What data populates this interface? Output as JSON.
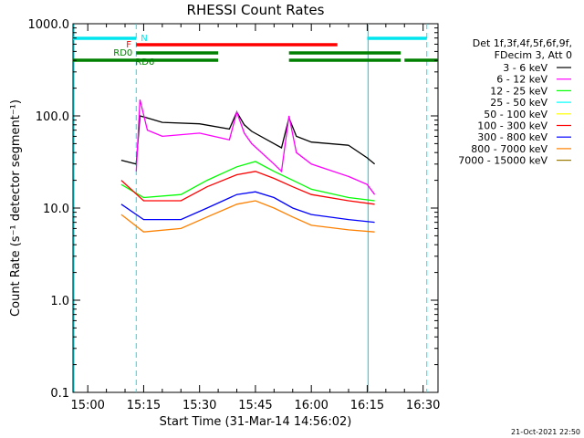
{
  "chart_data": {
    "type": "line",
    "title": "RHESSI Count Rates",
    "xlabel": "Start Time (31-Mar-14 14:56:02)",
    "ylabel": "Count Rate (s⁻¹ detector segment⁻¹)",
    "y_scale": "log",
    "ylim": [
      0.1,
      1000
    ],
    "xlim": [
      "14:56:02",
      "16:34:00"
    ],
    "x_ticks": [
      "15:00",
      "15:15",
      "15:30",
      "15:45",
      "16:00",
      "16:15",
      "16:30"
    ],
    "y_ticks": [
      "0.1",
      "1.0",
      "10.0",
      "100.0",
      "1000.0"
    ],
    "legend_header": [
      "Det 1f,3f,4f,5f,6f,9f,",
      "FDecim 3, Att 0"
    ],
    "legend_position": "right",
    "series": [
      {
        "name": "3 - 6 keV",
        "color": "#000000",
        "x": [
          "15:09",
          "15:13",
          "15:14",
          "15:16",
          "15:20",
          "15:30",
          "15:38",
          "15:40",
          "15:42",
          "15:44",
          "15:50",
          "15:52",
          "15:54",
          "15:56",
          "16:00",
          "16:10",
          "16:15",
          "16:17"
        ],
        "values": [
          33,
          30,
          100,
          95,
          85,
          82,
          72,
          110,
          80,
          68,
          50,
          45,
          95,
          60,
          52,
          48,
          35,
          30
        ]
      },
      {
        "name": "6 - 12 keV",
        "color": "#ff00ff",
        "x": [
          "15:13",
          "15:14",
          "15:16",
          "15:20",
          "15:30",
          "15:38",
          "15:40",
          "15:42",
          "15:44",
          "15:50",
          "15:52",
          "15:54",
          "15:56",
          "16:00",
          "16:10",
          "16:15",
          "16:17"
        ],
        "values": [
          25,
          150,
          70,
          60,
          65,
          55,
          110,
          65,
          50,
          30,
          25,
          100,
          40,
          30,
          22,
          18,
          14
        ]
      },
      {
        "name": "12 - 25 keV",
        "color": "#00ff00",
        "x": [
          "15:09",
          "15:15",
          "15:25",
          "15:32",
          "15:40",
          "15:45",
          "15:50",
          "15:55",
          "16:00",
          "16:10",
          "16:17"
        ],
        "values": [
          18,
          13,
          14,
          20,
          28,
          32,
          25,
          20,
          16,
          13,
          12
        ]
      },
      {
        "name": "25 - 50 keV",
        "color": "#00ffff",
        "x": [],
        "values": []
      },
      {
        "name": "50 - 100 keV",
        "color": "#ffff00",
        "x": [],
        "values": []
      },
      {
        "name": "100 - 300 keV",
        "color": "#ff0000",
        "x": [
          "15:09",
          "15:15",
          "15:25",
          "15:32",
          "15:40",
          "15:45",
          "15:50",
          "15:55",
          "16:00",
          "16:10",
          "16:17"
        ],
        "values": [
          20,
          12,
          12,
          17,
          23,
          25,
          21,
          17,
          14,
          12,
          11
        ]
      },
      {
        "name": "300 - 800 keV",
        "color": "#0000ff",
        "x": [
          "15:09",
          "15:15",
          "15:25",
          "15:32",
          "15:40",
          "15:45",
          "15:50",
          "15:55",
          "16:00",
          "16:10",
          "16:17"
        ],
        "values": [
          11,
          7.5,
          7.5,
          10,
          14,
          15,
          13,
          10,
          8.5,
          7.5,
          7
        ]
      },
      {
        "name": "800 - 7000 keV",
        "color": "#ff8000",
        "x": [
          "15:09",
          "15:15",
          "15:25",
          "15:32",
          "15:40",
          "15:45",
          "15:50",
          "15:55",
          "16:00",
          "16:10",
          "16:17"
        ],
        "values": [
          8.5,
          5.5,
          6,
          8,
          11,
          12,
          10,
          8,
          6.5,
          5.8,
          5.5
        ]
      },
      {
        "name": "7000 - 15000 keV",
        "color": "#9a7a00",
        "x": [],
        "values": []
      }
    ],
    "flags": [
      {
        "label": "N",
        "color": "#00e5ee",
        "row": 1,
        "segments": [
          [
            "14:56:02",
            "15:13"
          ],
          [
            "16:15",
            "16:31"
          ]
        ]
      },
      {
        "label": "F",
        "color": "#ff0000",
        "row": 2,
        "segments": [
          [
            "15:13",
            "16:07"
          ]
        ]
      },
      {
        "label": "RD0",
        "color": "#008000",
        "row": 3,
        "segments": [
          [
            "15:13",
            "15:35"
          ],
          [
            "15:54",
            "16:24"
          ]
        ]
      },
      {
        "label": "RD6",
        "color": "#008000",
        "row": 4,
        "segments": [
          [
            "14:56:02",
            "15:35"
          ],
          [
            "15:54",
            "16:24"
          ],
          [
            "16:25",
            "16:34"
          ]
        ]
      }
    ],
    "vlines_solid": [
      "14:56:02",
      "16:15"
    ],
    "vlines_dashed": [
      "15:13",
      "16:31"
    ],
    "grid": false
  },
  "footer": {
    "date": "21-Oct-2021 22:50"
  }
}
